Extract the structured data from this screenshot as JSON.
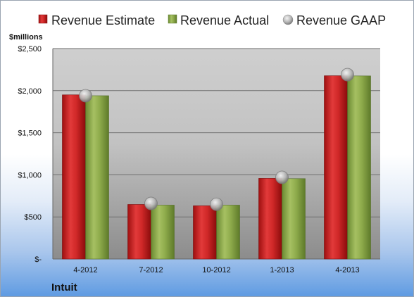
{
  "chart_data": {
    "type": "bar",
    "unit_label": "$millions",
    "company": "Intuit",
    "categories": [
      "4-2012",
      "7-2012",
      "10-2012",
      "1-2013",
      "4-2013"
    ],
    "series": [
      {
        "name": "Revenue Estimate",
        "kind": "bar",
        "color": "#d42a2a",
        "values": [
          1950,
          648,
          632,
          958,
          2177
        ]
      },
      {
        "name": "Revenue Actual",
        "kind": "bar",
        "color": "#8fac4c",
        "values": [
          1940,
          640,
          640,
          955,
          2175
        ]
      },
      {
        "name": "Revenue GAAP",
        "kind": "marker",
        "color": "#b8b8b8",
        "values": [
          1940,
          660,
          650,
          970,
          2190
        ]
      }
    ],
    "ylim": [
      0,
      2500
    ],
    "yticks": [
      {
        "value": 0,
        "label": "$-"
      },
      {
        "value": 500,
        "label": "$500"
      },
      {
        "value": 1000,
        "label": "$1,000"
      },
      {
        "value": 1500,
        "label": "$1,500"
      },
      {
        "value": 2000,
        "label": "$2,000"
      },
      {
        "value": 2500,
        "label": "$2,500"
      }
    ],
    "grid": true,
    "legend_position": "top"
  }
}
